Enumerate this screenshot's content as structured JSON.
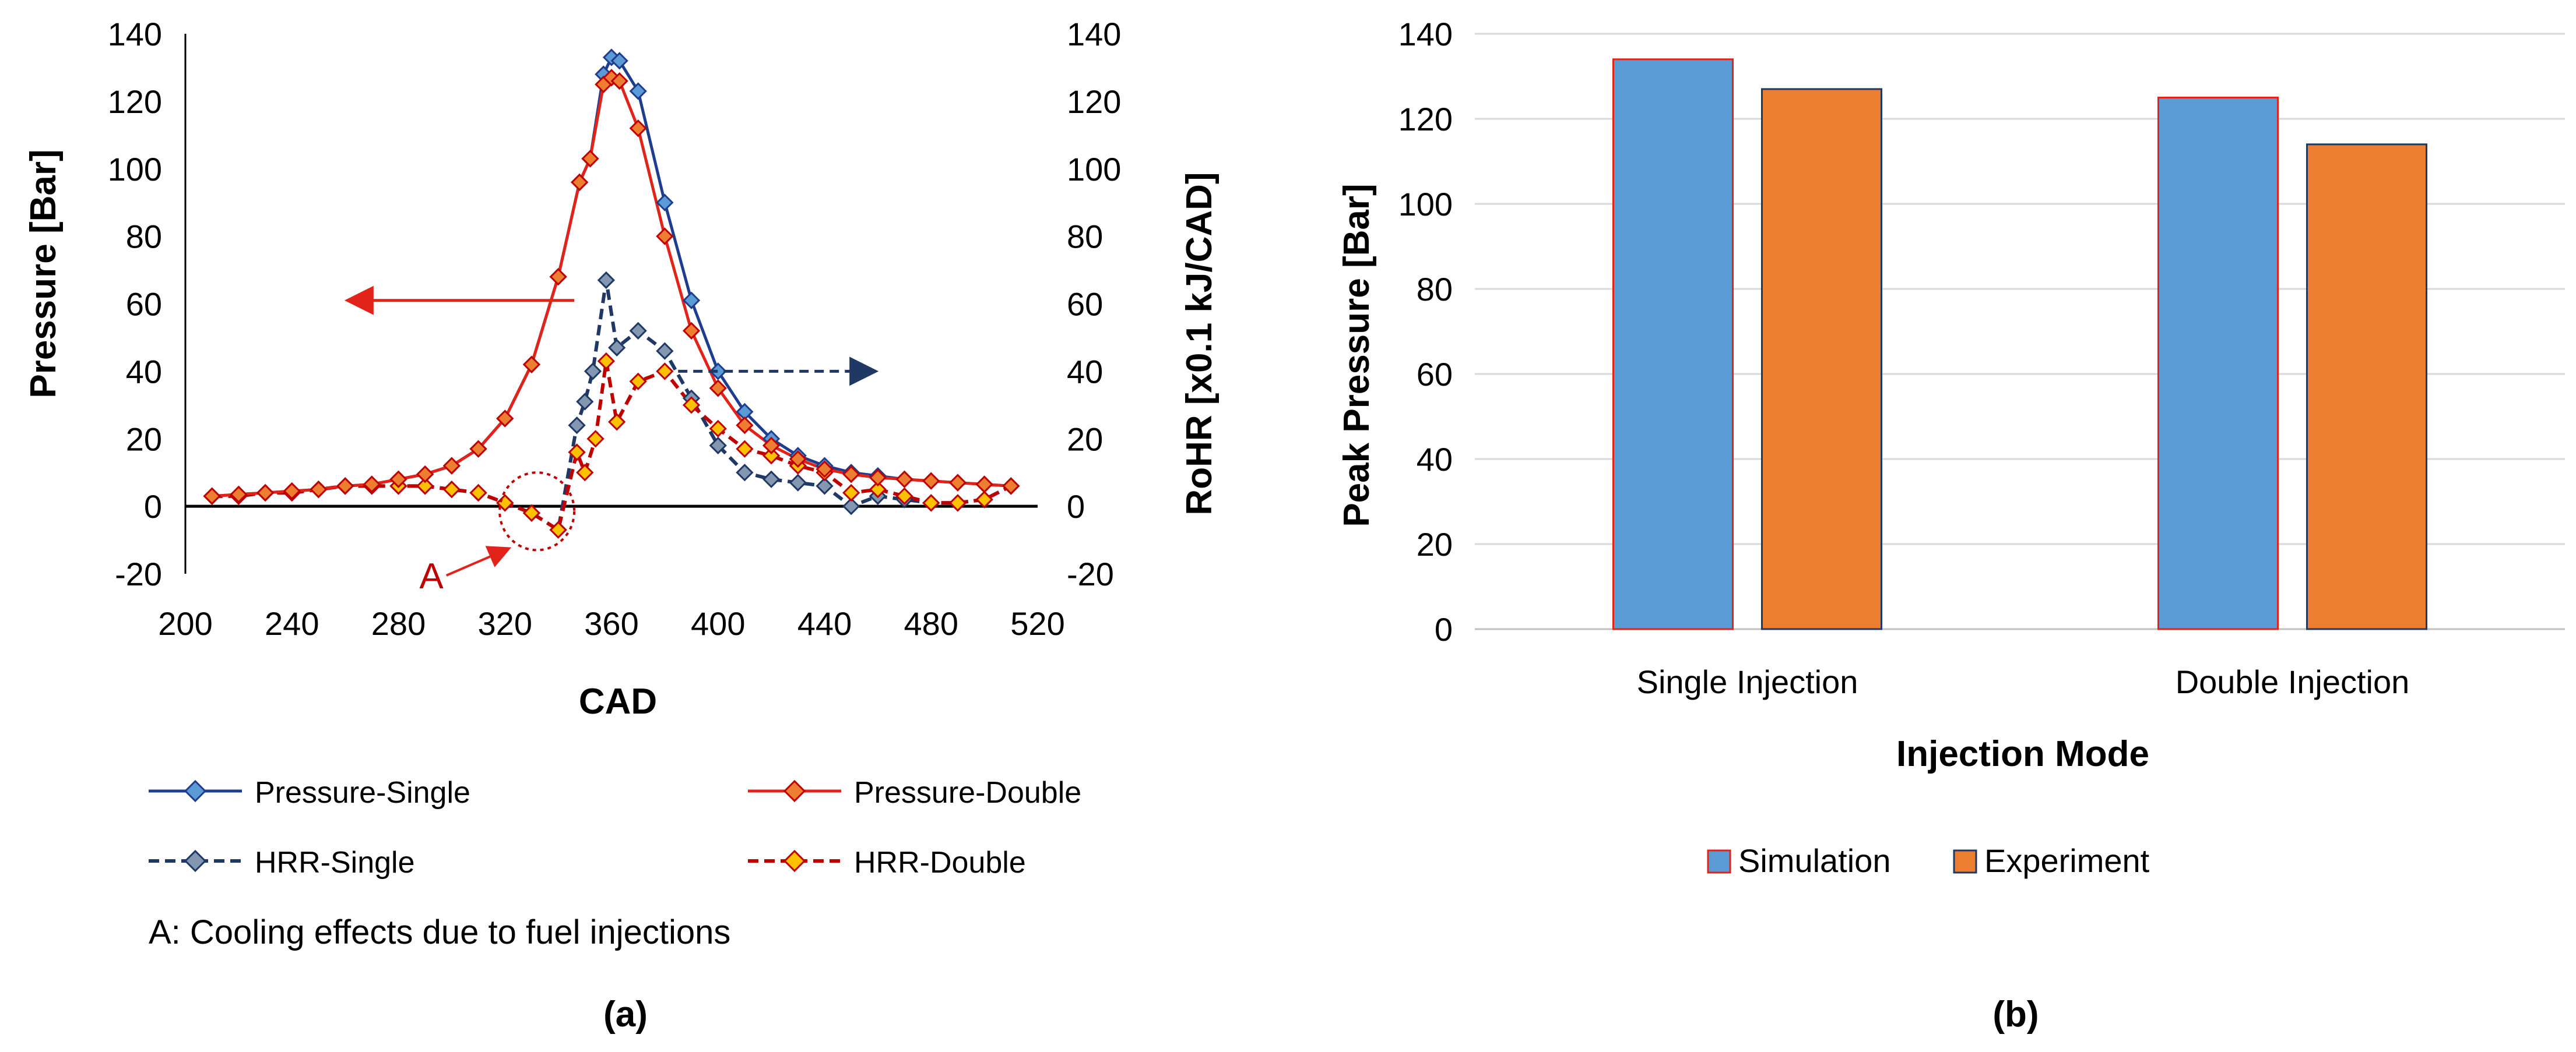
{
  "colors": {
    "pressure_single": "#1f3d8f",
    "pressure_double": "#e2231a",
    "hrr_single": "#1f3864",
    "hrr_double": "#c00000",
    "marker_fill_blue": "#5b9bd5",
    "marker_fill_grey": "#8497b0",
    "marker_fill_orange": "#ed7d31",
    "marker_fill_yellow": "#ffc000",
    "annotation": "#c00000",
    "arrow_blue": "#1f3864",
    "bar_simulation": "#5b9bd5",
    "bar_experiment": "#ed7d31",
    "gridline": "#d9d9d9"
  },
  "chart_data": [
    {
      "type": "line",
      "panel_label": "(a)",
      "xlabel": "CAD",
      "ylabel": "Pressure [Bar]",
      "y2label": "RoHR [x0.1 kJ/CAD]",
      "xlim": [
        200,
        520
      ],
      "ylim": [
        -20,
        140
      ],
      "y2lim": [
        -20,
        140
      ],
      "xticks": [
        "200",
        "240",
        "280",
        "320",
        "360",
        "400",
        "440",
        "480",
        "520"
      ],
      "yticks": [
        "-20",
        "0",
        "20",
        "40",
        "60",
        "80",
        "100",
        "120",
        "140"
      ],
      "y2ticks": [
        "-20",
        "0",
        "20",
        "40",
        "60",
        "80",
        "100",
        "120",
        "140"
      ],
      "grid": false,
      "series": [
        {
          "name": "Pressure-Single",
          "style": "solid",
          "axis": "left",
          "x": [
            210,
            220,
            230,
            240,
            250,
            260,
            270,
            280,
            290,
            300,
            310,
            320,
            330,
            340,
            348,
            352,
            357,
            360,
            363,
            370,
            380,
            390,
            400,
            410,
            420,
            430,
            440,
            450,
            460,
            470,
            480,
            490,
            500,
            510
          ],
          "y": [
            3,
            3.5,
            4,
            4.5,
            5,
            6,
            6.5,
            8,
            9.5,
            12,
            17,
            26,
            42,
            68,
            96,
            103,
            128,
            133,
            132,
            123,
            90,
            61,
            40,
            28,
            20,
            15,
            12,
            10,
            9,
            8,
            7.5,
            7,
            6.5,
            6
          ]
        },
        {
          "name": "Pressure-Double",
          "style": "solid",
          "axis": "left",
          "x": [
            210,
            220,
            230,
            240,
            250,
            260,
            270,
            280,
            290,
            300,
            310,
            320,
            330,
            340,
            348,
            352,
            357,
            360,
            363,
            370,
            380,
            390,
            400,
            410,
            420,
            430,
            440,
            450,
            460,
            470,
            480,
            490,
            500,
            510
          ],
          "y": [
            3,
            3.5,
            4,
            4.5,
            5,
            6,
            6.5,
            8,
            9.5,
            12,
            17,
            26,
            42,
            68,
            96,
            103,
            125,
            127,
            126,
            112,
            80,
            52,
            35,
            24,
            18,
            14,
            11,
            9.5,
            8.5,
            8,
            7.5,
            7,
            6.5,
            6
          ]
        },
        {
          "name": "HRR-Single",
          "style": "dashed",
          "axis": "right",
          "x": [
            210,
            220,
            230,
            240,
            250,
            260,
            270,
            280,
            290,
            300,
            310,
            320,
            330,
            340,
            347,
            350,
            353,
            358,
            362,
            370,
            380,
            390,
            400,
            410,
            420,
            430,
            440,
            450,
            460,
            470,
            480,
            490,
            500,
            510
          ],
          "y": [
            3,
            3,
            4,
            4,
            5,
            6,
            6,
            6,
            6,
            5,
            4,
            1,
            -2,
            -7,
            24,
            31,
            40,
            67,
            47,
            52,
            46,
            32,
            18,
            10,
            8,
            7,
            6,
            0,
            3,
            2,
            1,
            1,
            2,
            6
          ]
        },
        {
          "name": "HRR-Double",
          "style": "dashed",
          "axis": "right",
          "x": [
            210,
            220,
            230,
            240,
            250,
            260,
            270,
            280,
            290,
            300,
            310,
            320,
            330,
            340,
            347,
            350,
            354,
            358,
            362,
            370,
            380,
            390,
            400,
            410,
            420,
            430,
            440,
            450,
            460,
            470,
            480,
            490,
            500,
            510
          ],
          "y": [
            3,
            3,
            4,
            4,
            5,
            6,
            6,
            6,
            6,
            5,
            4,
            1,
            -2,
            -7,
            16,
            10,
            20,
            43,
            25,
            37,
            40,
            30,
            23,
            17,
            15,
            12,
            10,
            4,
            5,
            3,
            1,
            1,
            2,
            6
          ]
        }
      ],
      "annotations": {
        "point_label": "A",
        "point_caption": "A: Cooling effects due to fuel injections"
      }
    },
    {
      "type": "bar",
      "panel_label": "(b)",
      "categories": [
        "Single Injection",
        "Double Injection"
      ],
      "series": [
        {
          "name": "Simulation",
          "values": [
            134,
            125
          ]
        },
        {
          "name": "Experiment",
          "values": [
            127,
            114
          ]
        }
      ],
      "xlabel": "Injection Mode",
      "ylabel": "Peak Pressure [Bar]",
      "ylim": [
        0,
        140
      ],
      "yticks": [
        "0",
        "20",
        "40",
        "60",
        "80",
        "100",
        "120",
        "140"
      ],
      "grid": true
    }
  ]
}
